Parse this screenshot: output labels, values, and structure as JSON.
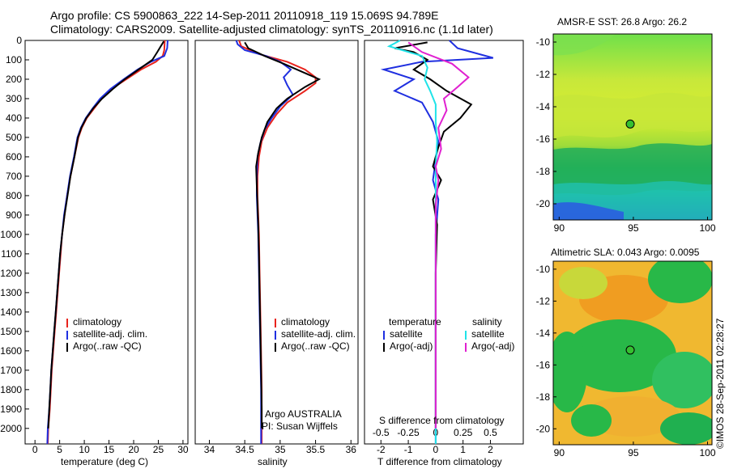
{
  "header": {
    "line1": "Argo profile: CS 5900863_222 14-Sep-2011 20110918_119 15.069S 94.789E",
    "line2": "Climatology: CARS2009. Satellite-adjusted climatology: synTS_20110916.nc (1.1d later)"
  },
  "credit": "©IMOS 28-Sep-2011 02:28:27",
  "colors": {
    "climatology": "#e8231c",
    "satellite": "#1f2fe0",
    "argo": "#000000",
    "cyan": "#1fe3e8",
    "magenta": "#e020d0"
  },
  "chart_data": [
    {
      "type": "line",
      "panel": "temperature",
      "xlabel": "temperature (deg C)",
      "xlim": [
        -2,
        31
      ],
      "xticks": [
        0,
        5,
        10,
        15,
        20,
        25,
        30
      ],
      "ylim": [
        0,
        2080
      ],
      "yticks": [
        0,
        100,
        200,
        300,
        400,
        500,
        600,
        700,
        800,
        900,
        1000,
        1100,
        1200,
        1300,
        1400,
        1500,
        1600,
        1700,
        1800,
        1900,
        2000
      ],
      "legend": [
        "climatology",
        "satellite-adj. clim.",
        "Argo(..raw -QC)"
      ],
      "series": [
        {
          "name": "climatology",
          "color": "#e8231c",
          "points": [
            [
              26.3,
              0
            ],
            [
              26.2,
              50
            ],
            [
              25.9,
              80
            ],
            [
              24.5,
              110
            ],
            [
              21.5,
              150
            ],
            [
              18.5,
              200
            ],
            [
              15.5,
              250
            ],
            [
              13.5,
              300
            ],
            [
              12.0,
              350
            ],
            [
              10.5,
              400
            ],
            [
              9.5,
              450
            ],
            [
              8.8,
              500
            ],
            [
              8.0,
              600
            ],
            [
              7.2,
              700
            ],
            [
              6.5,
              800
            ],
            [
              6.0,
              900
            ],
            [
              5.5,
              1000
            ],
            [
              5.2,
              1100
            ],
            [
              4.9,
              1200
            ],
            [
              4.6,
              1300
            ],
            [
              4.3,
              1400
            ],
            [
              4.0,
              1500
            ],
            [
              3.7,
              1600
            ],
            [
              3.4,
              1700
            ],
            [
              3.2,
              1800
            ],
            [
              3.0,
              1900
            ],
            [
              2.7,
              2000
            ],
            [
              2.6,
              2080
            ]
          ]
        },
        {
          "name": "satellite-adj. clim.",
          "color": "#1f2fe0",
          "points": [
            [
              26.9,
              0
            ],
            [
              26.8,
              40
            ],
            [
              26.2,
              80
            ],
            [
              23.5,
              110
            ],
            [
              20.8,
              150
            ],
            [
              18.0,
              200
            ],
            [
              15.3,
              250
            ],
            [
              13.2,
              300
            ],
            [
              11.7,
              350
            ],
            [
              10.3,
              400
            ],
            [
              9.3,
              450
            ],
            [
              8.6,
              500
            ],
            [
              7.9,
              600
            ],
            [
              7.1,
              700
            ],
            [
              6.5,
              800
            ],
            [
              5.9,
              900
            ],
            [
              5.5,
              1000
            ],
            [
              5.1,
              1100
            ],
            [
              4.8,
              1200
            ],
            [
              4.5,
              1300
            ],
            [
              4.2,
              1400
            ],
            [
              3.9,
              1500
            ],
            [
              3.6,
              1600
            ],
            [
              3.3,
              1700
            ],
            [
              3.1,
              1800
            ],
            [
              2.9,
              1900
            ],
            [
              2.6,
              2000
            ],
            [
              2.5,
              2080
            ]
          ]
        },
        {
          "name": "Argo(..raw -QC)",
          "color": "#000000",
          "points": [
            [
              26.1,
              5
            ],
            [
              25.5,
              30
            ],
            [
              24.8,
              60
            ],
            [
              23.8,
              100
            ],
            [
              21.0,
              150
            ],
            [
              18.2,
              200
            ],
            [
              15.8,
              250
            ],
            [
              13.6,
              300
            ],
            [
              11.8,
              350
            ],
            [
              10.4,
              400
            ],
            [
              9.4,
              450
            ],
            [
              8.7,
              500
            ],
            [
              8.0,
              600
            ],
            [
              7.2,
              700
            ],
            [
              6.6,
              800
            ],
            [
              6.0,
              900
            ],
            [
              5.5,
              1000
            ],
            [
              5.1,
              1100
            ],
            [
              4.8,
              1200
            ],
            [
              4.5,
              1300
            ],
            [
              4.2,
              1400
            ],
            [
              3.9,
              1500
            ],
            [
              3.6,
              1600
            ],
            [
              3.3,
              1700
            ],
            [
              3.1,
              1800
            ],
            [
              2.9,
              1900
            ],
            [
              2.7,
              2000
            ]
          ]
        }
      ]
    },
    {
      "type": "line",
      "panel": "salinity",
      "xlabel": "salinity",
      "xlim": [
        33.8,
        36.1
      ],
      "xticks": [
        34,
        34.5,
        35,
        35.5,
        36
      ],
      "xticklabels": [
        "34",
        "34.5",
        "35",
        "35.5",
        "36"
      ],
      "ylim": [
        0,
        2080
      ],
      "legend": [
        "climatology",
        "satellite-adj. clim.",
        "Argo(..raw -QC)"
      ],
      "annotation": [
        "Argo AUSTRALIA",
        "PI: Susan Wijffels"
      ],
      "series": [
        {
          "name": "climatology",
          "color": "#e8231c",
          "points": [
            [
              34.42,
              0
            ],
            [
              34.45,
              30
            ],
            [
              34.7,
              70
            ],
            [
              35.1,
              110
            ],
            [
              35.35,
              150
            ],
            [
              35.5,
              190
            ],
            [
              35.5,
              220
            ],
            [
              35.35,
              260
            ],
            [
              35.1,
              320
            ],
            [
              34.95,
              380
            ],
            [
              34.82,
              450
            ],
            [
              34.74,
              520
            ],
            [
              34.7,
              600
            ],
            [
              34.68,
              700
            ],
            [
              34.68,
              800
            ],
            [
              34.69,
              900
            ],
            [
              34.7,
              1000
            ],
            [
              34.71,
              1200
            ],
            [
              34.72,
              1400
            ],
            [
              34.73,
              1600
            ],
            [
              34.74,
              1800
            ],
            [
              34.74,
              2080
            ]
          ]
        },
        {
          "name": "satellite-adj. clim.",
          "color": "#1f2fe0",
          "points": [
            [
              34.38,
              0
            ],
            [
              34.4,
              20
            ],
            [
              34.5,
              50
            ],
            [
              34.8,
              80
            ],
            [
              35.0,
              110
            ],
            [
              35.15,
              150
            ],
            [
              35.05,
              190
            ],
            [
              35.1,
              230
            ],
            [
              35.18,
              280
            ],
            [
              35.0,
              340
            ],
            [
              34.88,
              400
            ],
            [
              34.78,
              460
            ],
            [
              34.72,
              530
            ],
            [
              34.68,
              600
            ],
            [
              34.67,
              700
            ],
            [
              34.67,
              800
            ],
            [
              34.68,
              900
            ],
            [
              34.69,
              1000
            ],
            [
              34.7,
              1200
            ],
            [
              34.71,
              1400
            ],
            [
              34.72,
              1600
            ],
            [
              34.73,
              1800
            ],
            [
              34.73,
              2080
            ]
          ]
        },
        {
          "name": "Argo(..raw -QC)",
          "color": "#000000",
          "points": [
            [
              34.5,
              10
            ],
            [
              34.55,
              40
            ],
            [
              34.78,
              80
            ],
            [
              35.05,
              120
            ],
            [
              35.3,
              160
            ],
            [
              35.55,
              200
            ],
            [
              35.35,
              240
            ],
            [
              35.1,
              300
            ],
            [
              34.95,
              350
            ],
            [
              34.82,
              420
            ],
            [
              34.74,
              500
            ],
            [
              34.69,
              580
            ],
            [
              34.66,
              650
            ],
            [
              34.67,
              750
            ],
            [
              34.68,
              850
            ],
            [
              34.69,
              950
            ],
            [
              34.7,
              1100
            ],
            [
              34.71,
              1300
            ],
            [
              34.72,
              1500
            ],
            [
              34.73,
              1700
            ],
            [
              34.74,
              1900
            ],
            [
              34.74,
              2000
            ]
          ]
        }
      ]
    },
    {
      "type": "line",
      "panel": "difference",
      "xlabel": "T difference from climatology",
      "toplabel": "S difference from climatology",
      "xlim": [
        -2.6,
        3.2
      ],
      "xticks": [
        -2,
        -1,
        0,
        1,
        2
      ],
      "sticks": [
        -0.5,
        -0.25,
        0,
        0.25,
        0.5
      ],
      "sticklabels": [
        "-0.5",
        "-0.25",
        "0",
        "0.25",
        "0.5"
      ],
      "ylim": [
        0,
        2080
      ],
      "legend_titles": [
        "temperature",
        "salinity"
      ],
      "legend_t": [
        "satellite",
        "Argo(-adj)"
      ],
      "legend_s": [
        "satellite",
        "Argo(-adj)"
      ],
      "series": [
        {
          "name": "satellite",
          "color": "#1f2fe0",
          "points": [
            [
              0.5,
              0
            ],
            [
              0.8,
              40
            ],
            [
              2.1,
              90
            ],
            [
              -0.5,
              110
            ],
            [
              -1.9,
              150
            ],
            [
              -0.8,
              200
            ],
            [
              -1.5,
              260
            ],
            [
              -0.5,
              320
            ],
            [
              -0.1,
              420
            ],
            [
              0.1,
              520
            ],
            [
              0.0,
              620
            ],
            [
              -0.1,
              720
            ],
            [
              0.1,
              820
            ],
            [
              0.0,
              1000
            ],
            [
              0.0,
              1400
            ],
            [
              0.0,
              1800
            ],
            [
              0.0,
              2080
            ]
          ]
        },
        {
          "name": "Argo(-adj)",
          "color": "#000000",
          "points": [
            [
              -0.3,
              10
            ],
            [
              -1.5,
              40
            ],
            [
              -0.8,
              60
            ],
            [
              -0.3,
              100
            ],
            [
              -0.8,
              150
            ],
            [
              -0.2,
              200
            ],
            [
              0.4,
              260
            ],
            [
              1.3,
              330
            ],
            [
              0.9,
              400
            ],
            [
              0.3,
              470
            ],
            [
              0.1,
              550
            ],
            [
              -0.1,
              650
            ],
            [
              0.2,
              720
            ],
            [
              -0.1,
              820
            ],
            [
              0.05,
              950
            ],
            [
              0.0,
              1200
            ],
            [
              0.0,
              1600
            ],
            [
              0.0,
              2000
            ]
          ]
        },
        {
          "name": "satellite (S)",
          "color": "#1fe3e8",
          "points": [
            [
              -1.3,
              0
            ],
            [
              -1.7,
              30
            ],
            [
              -0.5,
              80
            ],
            [
              -0.3,
              140
            ],
            [
              -0.4,
              200
            ],
            [
              -0.2,
              260
            ],
            [
              0.0,
              330
            ],
            [
              0.0,
              420
            ],
            [
              0.05,
              520
            ],
            [
              0.0,
              650
            ],
            [
              0.0,
              800
            ],
            [
              0.0,
              1200
            ],
            [
              0.0,
              1600
            ],
            [
              0.0,
              2080
            ]
          ]
        },
        {
          "name": "Argo(-adj) (S)",
          "color": "#e020d0",
          "points": [
            [
              -1.0,
              10
            ],
            [
              -0.5,
              60
            ],
            [
              0.6,
              120
            ],
            [
              1.2,
              190
            ],
            [
              0.8,
              240
            ],
            [
              0.3,
              300
            ],
            [
              0.4,
              360
            ],
            [
              0.1,
              450
            ],
            [
              0.2,
              560
            ],
            [
              0.0,
              650
            ],
            [
              0.1,
              720
            ],
            [
              0.0,
              850
            ],
            [
              0.0,
              1200
            ],
            [
              0.0,
              1600
            ],
            [
              0.0,
              2000
            ]
          ]
        }
      ]
    },
    {
      "type": "heatmap",
      "panel": "sst",
      "title": "AMSR-E SST: 26.8 Argo: 26.2",
      "xlim": [
        89.6,
        100.3
      ],
      "ylim": [
        -21,
        -9.5
      ],
      "xticks": [
        90,
        95,
        100
      ],
      "yticks": [
        -10,
        -12,
        -14,
        -16,
        -18,
        -20
      ],
      "marker": [
        94.789,
        -15.069
      ]
    },
    {
      "type": "heatmap",
      "panel": "sla",
      "title": "Altimetric SLA: 0.043 Argo: 0.0095",
      "xlim": [
        89.6,
        100.3
      ],
      "ylim": [
        -21,
        -9.5
      ],
      "xticks": [
        90,
        95,
        100
      ],
      "yticks": [
        -10,
        -12,
        -14,
        -16,
        -18,
        -20
      ],
      "marker": [
        94.789,
        -15.069
      ]
    }
  ]
}
